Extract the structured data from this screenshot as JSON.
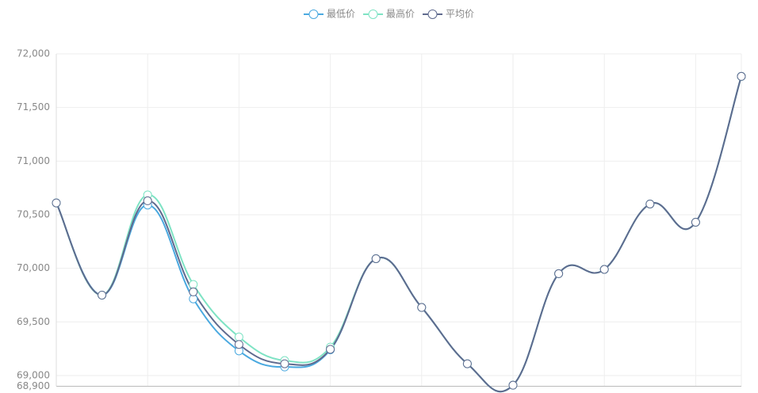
{
  "chart_data": {
    "type": "line",
    "categories": [
      null,
      null,
      null,
      null,
      null,
      null,
      null,
      null,
      null,
      null,
      null,
      null,
      null,
      null,
      null,
      null
    ],
    "series": [
      {
        "name": "最低价",
        "color": "#4aa9e0",
        "values": [
          70610,
          69750,
          70590,
          69715,
          69230,
          69080,
          69240,
          70090,
          69635,
          69110,
          68910,
          69950,
          69990,
          70600,
          70430,
          71790
        ]
      },
      {
        "name": "最高价",
        "color": "#7ee3c4",
        "values": [
          70610,
          69750,
          70685,
          69850,
          69360,
          69140,
          69265,
          70090,
          69635,
          69110,
          68910,
          69950,
          69990,
          70600,
          70430,
          71790
        ]
      },
      {
        "name": "平均价",
        "color": "#5f6a8e",
        "values": [
          70610,
          69750,
          70630,
          69780,
          69290,
          69110,
          69245,
          70090,
          69635,
          69110,
          68910,
          69950,
          69990,
          70600,
          70430,
          71790
        ]
      }
    ],
    "ylim": [
      68900,
      72000
    ],
    "yticks": [
      {
        "value": 68900,
        "label": "68,900"
      },
      {
        "value": 69000,
        "label": "69,000"
      },
      {
        "value": 69500,
        "label": "69,500"
      },
      {
        "value": 70000,
        "label": "70,000"
      },
      {
        "value": 70500,
        "label": "70,500"
      },
      {
        "value": 71000,
        "label": "71,000"
      },
      {
        "value": 71500,
        "label": "71,500"
      },
      {
        "value": 72000,
        "label": "72,000"
      }
    ],
    "grid": true,
    "legend": "top"
  }
}
